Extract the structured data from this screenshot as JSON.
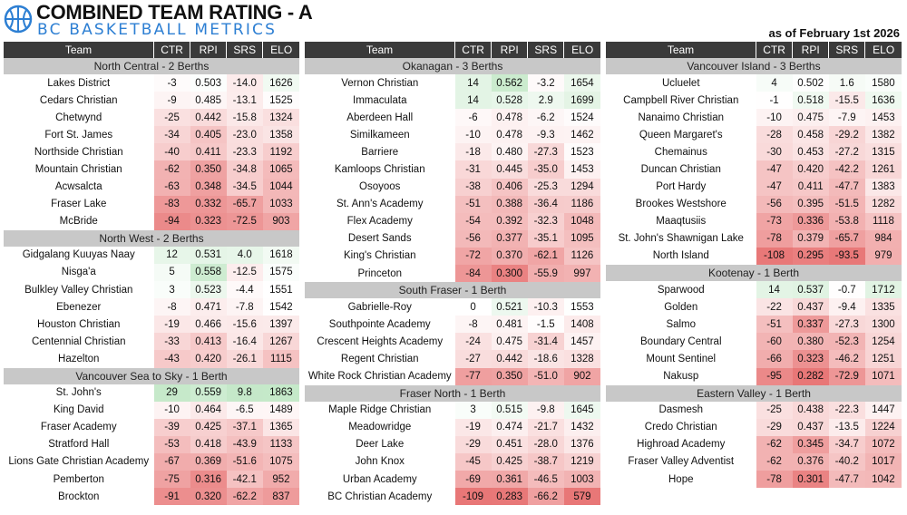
{
  "header": {
    "title": "COMBINED TEAM RATING - A",
    "subtitle": "BC BASKETBALL METRICS",
    "as_of": "as of February 1st 2026"
  },
  "table_headers": [
    "Team",
    "CTR",
    "RPI",
    "SRS",
    "ELO"
  ],
  "columns": [
    {
      "groups": [
        {
          "name": "North Central - 2 Berths",
          "teams": [
            [
              "Lakes District",
              "-3",
              "0.503",
              "-14.0",
              "1626"
            ],
            [
              "Cedars Christian",
              "-9",
              "0.485",
              "-13.1",
              "1525"
            ],
            [
              "Chetwynd",
              "-25",
              "0.442",
              "-15.8",
              "1324"
            ],
            [
              "Fort St. James",
              "-34",
              "0.405",
              "-23.0",
              "1358"
            ],
            [
              "Northside Christian",
              "-40",
              "0.411",
              "-23.3",
              "1192"
            ],
            [
              "Mountain Christian",
              "-62",
              "0.350",
              "-34.8",
              "1065"
            ],
            [
              "Acwsalcta",
              "-63",
              "0.348",
              "-34.5",
              "1044"
            ],
            [
              "Fraser Lake",
              "-83",
              "0.332",
              "-65.7",
              "1033"
            ],
            [
              "McBride",
              "-94",
              "0.323",
              "-72.5",
              "903"
            ]
          ]
        },
        {
          "name": "North West - 2 Berths",
          "teams": [
            [
              "Gidgalang Kuuyas Naay",
              "12",
              "0.531",
              "4.0",
              "1618"
            ],
            [
              "Nisga'a",
              "5",
              "0.558",
              "-12.5",
              "1575"
            ],
            [
              "Bulkley Valley Christian",
              "3",
              "0.523",
              "-4.4",
              "1551"
            ],
            [
              "Ebenezer",
              "-8",
              "0.471",
              "-7.8",
              "1542"
            ],
            [
              "Houston Christian",
              "-19",
              "0.466",
              "-15.6",
              "1397"
            ],
            [
              "Centennial Christian",
              "-33",
              "0.413",
              "-16.4",
              "1267"
            ],
            [
              "Hazelton",
              "-43",
              "0.420",
              "-26.1",
              "1115"
            ]
          ]
        },
        {
          "name": "Vancouver Sea to Sky - 1 Berth",
          "teams": [
            [
              "St. John's",
              "29",
              "0.559",
              "9.8",
              "1863"
            ],
            [
              "King David",
              "-10",
              "0.464",
              "-6.5",
              "1489"
            ],
            [
              "Fraser Academy",
              "-39",
              "0.425",
              "-37.1",
              "1365"
            ],
            [
              "Stratford Hall",
              "-53",
              "0.418",
              "-43.9",
              "1133"
            ],
            [
              "Lions Gate Christian Academy",
              "-67",
              "0.369",
              "-51.6",
              "1075"
            ],
            [
              "Pemberton",
              "-75",
              "0.316",
              "-42.1",
              "952"
            ],
            [
              "Brockton",
              "-91",
              "0.320",
              "-62.2",
              "837"
            ]
          ]
        }
      ]
    },
    {
      "groups": [
        {
          "name": "Okanagan - 3 Berths",
          "teams": [
            [
              "Vernon Christian",
              "14",
              "0.562",
              "-3.2",
              "1654"
            ],
            [
              "Immaculata",
              "14",
              "0.528",
              "2.9",
              "1699"
            ],
            [
              "Aberdeen Hall",
              "-6",
              "0.478",
              "-6.2",
              "1524"
            ],
            [
              "Similkameen",
              "-10",
              "0.478",
              "-9.3",
              "1462"
            ],
            [
              "Barriere",
              "-18",
              "0.480",
              "-27.3",
              "1523"
            ],
            [
              "Kamloops Christian",
              "-31",
              "0.445",
              "-35.0",
              "1453"
            ],
            [
              "Osoyoos",
              "-38",
              "0.406",
              "-25.3",
              "1294"
            ],
            [
              "St. Ann's Academy",
              "-51",
              "0.388",
              "-36.4",
              "1186"
            ],
            [
              "Flex Academy",
              "-54",
              "0.392",
              "-32.3",
              "1048"
            ],
            [
              "Desert Sands",
              "-56",
              "0.377",
              "-35.1",
              "1095"
            ],
            [
              "King's Christian",
              "-72",
              "0.370",
              "-62.1",
              "1126"
            ],
            [
              "Princeton",
              "-84",
              "0.300",
              "-55.9",
              "997"
            ]
          ]
        },
        {
          "name": "South Fraser - 1 Berth",
          "teams": [
            [
              "Gabrielle-Roy",
              "0",
              "0.521",
              "-10.3",
              "1553"
            ],
            [
              "Southpointe Academy",
              "-8",
              "0.481",
              "-1.5",
              "1408"
            ],
            [
              "Crescent Heights Academy",
              "-24",
              "0.475",
              "-31.4",
              "1457"
            ],
            [
              "Regent Christian",
              "-27",
              "0.442",
              "-18.6",
              "1328"
            ],
            [
              "White Rock Christian Academy",
              "-77",
              "0.350",
              "-51.0",
              "902"
            ]
          ]
        },
        {
          "name": "Fraser North - 1 Berth",
          "teams": [
            [
              "Maple Ridge Christian",
              "3",
              "0.515",
              "-9.8",
              "1645"
            ],
            [
              "Meadowridge",
              "-19",
              "0.474",
              "-21.7",
              "1432"
            ],
            [
              "Deer Lake",
              "-29",
              "0.451",
              "-28.0",
              "1376"
            ],
            [
              "John Knox",
              "-45",
              "0.425",
              "-38.7",
              "1219"
            ],
            [
              "Urban Academy",
              "-69",
              "0.361",
              "-46.5",
              "1003"
            ],
            [
              "BC Christian Academy",
              "-109",
              "0.283",
              "-66.2",
              "579"
            ]
          ]
        }
      ]
    },
    {
      "groups": [
        {
          "name": "Vancouver Island - 3 Berths",
          "teams": [
            [
              "Ucluelet",
              "4",
              "0.502",
              "1.6",
              "1580"
            ],
            [
              "Campbell River Christian",
              "-1",
              "0.518",
              "-15.5",
              "1636"
            ],
            [
              "Nanaimo Christian",
              "-10",
              "0.475",
              "-7.9",
              "1453"
            ],
            [
              "Queen Margaret's",
              "-28",
              "0.458",
              "-29.2",
              "1382"
            ],
            [
              "Chemainus",
              "-30",
              "0.453",
              "-27.2",
              "1315"
            ],
            [
              "Duncan Christian",
              "-47",
              "0.420",
              "-42.2",
              "1261"
            ],
            [
              "Port Hardy",
              "-47",
              "0.411",
              "-47.7",
              "1383"
            ],
            [
              "Brookes Westshore",
              "-56",
              "0.395",
              "-51.5",
              "1282"
            ],
            [
              "Maaqtusiis",
              "-73",
              "0.336",
              "-53.8",
              "1118"
            ],
            [
              "St. John's Shawnigan Lake",
              "-78",
              "0.379",
              "-65.7",
              "984"
            ],
            [
              "North Island",
              "-108",
              "0.295",
              "-93.5",
              "979"
            ]
          ]
        },
        {
          "name": "Kootenay - 1 Berth",
          "teams": [
            [
              "Sparwood",
              "14",
              "0.537",
              "-0.7",
              "1712"
            ],
            [
              "Golden",
              "-22",
              "0.437",
              "-9.4",
              "1335"
            ],
            [
              "Salmo",
              "-51",
              "0.337",
              "-27.3",
              "1300"
            ],
            [
              "Boundary Central",
              "-60",
              "0.380",
              "-52.3",
              "1254"
            ],
            [
              "Mount Sentinel",
              "-66",
              "0.323",
              "-46.2",
              "1251"
            ],
            [
              "Nakusp",
              "-95",
              "0.282",
              "-72.9",
              "1071"
            ]
          ]
        },
        {
          "name": "Eastern Valley - 1 Berth",
          "teams": [
            [
              "Dasmesh",
              "-25",
              "0.438",
              "-22.3",
              "1447"
            ],
            [
              "Credo Christian",
              "-29",
              "0.437",
              "-13.5",
              "1224"
            ],
            [
              "Highroad Academy",
              "-62",
              "0.345",
              "-34.7",
              "1072"
            ],
            [
              "Fraser Valley Adventist",
              "-62",
              "0.376",
              "-40.2",
              "1017"
            ],
            [
              "Hope",
              "-78",
              "0.301",
              "-47.7",
              "1042"
            ]
          ]
        }
      ]
    }
  ]
}
